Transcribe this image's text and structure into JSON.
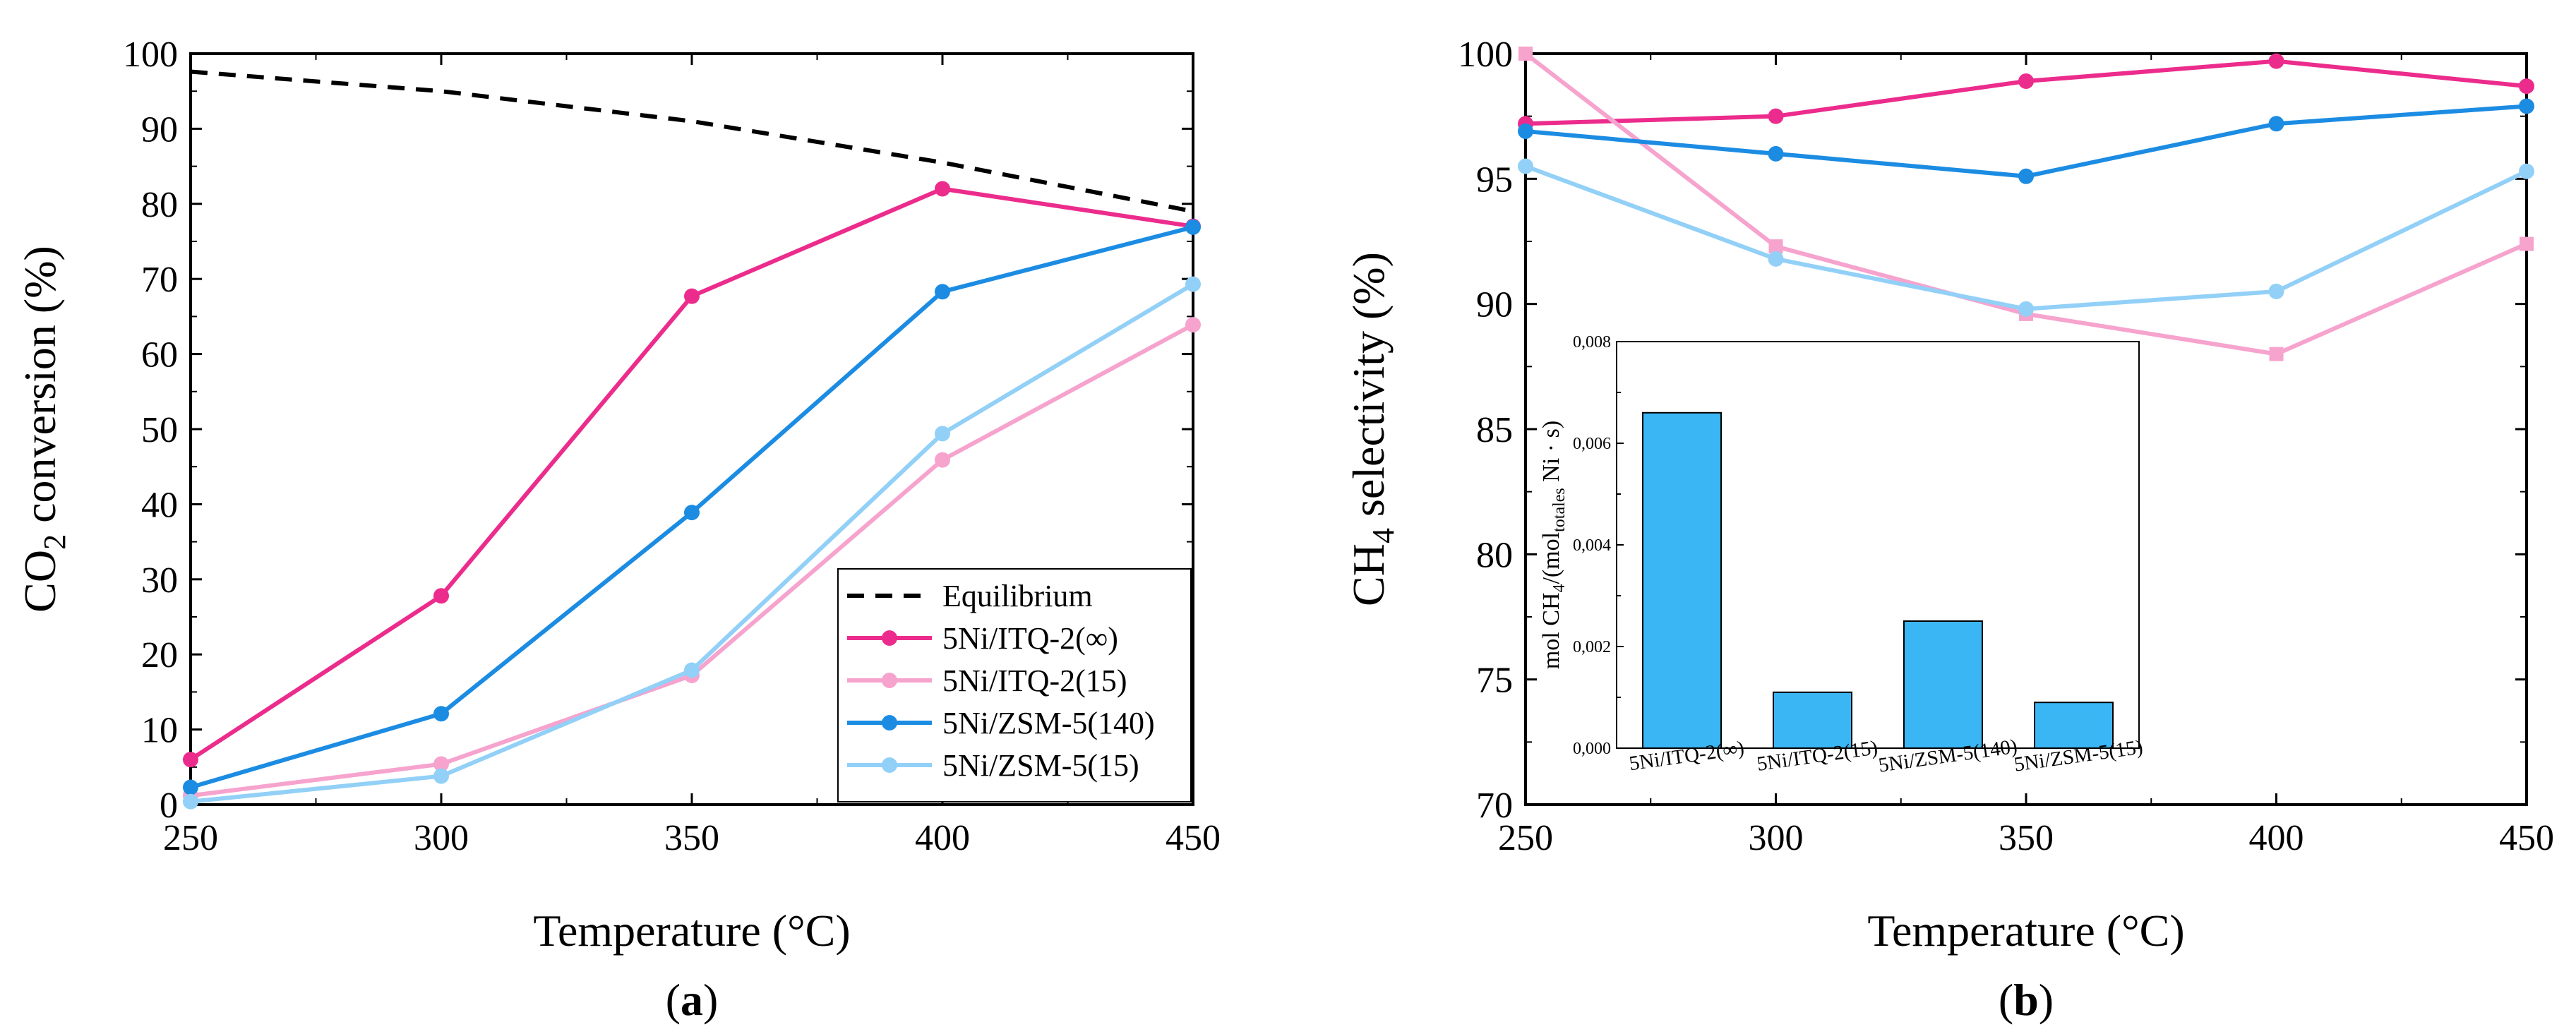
{
  "chart_data": [
    {
      "type": "line",
      "panel": "a",
      "panel_label": "(a)",
      "xlabel": "Temperature (°C)",
      "ylabel": {
        "pre": "CO",
        "sub": "2",
        "post": " conversion (%)"
      },
      "xlim": [
        250,
        450
      ],
      "ylim": [
        0,
        100
      ],
      "xticks": [
        250,
        300,
        350,
        400,
        450
      ],
      "yticks": [
        0,
        10,
        20,
        30,
        40,
        50,
        60,
        70,
        80,
        90,
        100
      ],
      "legend": "bottom-right",
      "series": [
        {
          "name": "Equilibrium",
          "color": "#000000",
          "dashed": true,
          "marker": "none",
          "x": [
            250,
            300,
            350,
            400,
            450
          ],
          "values": [
            97.6,
            95.0,
            91.0,
            85.5,
            79.0
          ]
        },
        {
          "name": "5Ni/ITQ-2(∞)",
          "color": "#EC2C8C",
          "marker": "circle",
          "x": [
            250,
            300,
            350,
            400,
            450
          ],
          "values": [
            6.0,
            27.8,
            67.7,
            82.0,
            77.0
          ]
        },
        {
          "name": "5Ni/ITQ-2(15)",
          "color": "#F6A3CE",
          "marker": "circle",
          "x": [
            250,
            300,
            350,
            400,
            450
          ],
          "values": [
            1.2,
            5.4,
            17.2,
            45.9,
            63.9
          ]
        },
        {
          "name": "5Ni/ZSM-5(140)",
          "color": "#1C8CE3",
          "marker": "circle",
          "x": [
            250,
            300,
            350,
            400,
            450
          ],
          "values": [
            2.3,
            12.1,
            38.9,
            68.3,
            76.9
          ]
        },
        {
          "name": "5Ni/ZSM-5(15)",
          "color": "#92D0F7",
          "marker": "circle",
          "x": [
            250,
            300,
            350,
            400,
            450
          ],
          "values": [
            0.4,
            3.8,
            17.9,
            49.4,
            69.3
          ]
        }
      ]
    },
    {
      "type": "line",
      "panel": "b",
      "panel_label": "(b)",
      "xlabel": "Temperature (°C)",
      "ylabel": {
        "pre": "CH",
        "sub": "4",
        "post": " selectivity (%)"
      },
      "xlim": [
        250,
        450
      ],
      "ylim": [
        70,
        100
      ],
      "xticks": [
        250,
        300,
        350,
        400,
        450
      ],
      "yticks": [
        70,
        75,
        80,
        85,
        90,
        95,
        100
      ],
      "series": [
        {
          "name": "5Ni/ITQ-2(∞)",
          "color": "#EC2C8C",
          "marker": "circle",
          "x": [
            250,
            300,
            350,
            400,
            450
          ],
          "values": [
            97.2,
            97.5,
            98.9,
            99.7,
            98.7
          ]
        },
        {
          "name": "5Ni/ITQ-2(15)",
          "color": "#F6A3CE",
          "marker": "square",
          "x": [
            250,
            300,
            350,
            400,
            450
          ],
          "values": [
            100.0,
            92.3,
            89.6,
            88.0,
            92.4
          ]
        },
        {
          "name": "5Ni/ZSM-5(140)",
          "color": "#1C8CE3",
          "marker": "circle",
          "x": [
            250,
            300,
            350,
            400,
            450
          ],
          "values": [
            96.9,
            96.0,
            95.1,
            97.2,
            97.9
          ]
        },
        {
          "name": "5Ni/ZSM-5(15)",
          "color": "#92D0F7",
          "marker": "circle",
          "x": [
            250,
            300,
            350,
            400,
            450
          ],
          "values": [
            95.5,
            91.8,
            89.8,
            90.5,
            95.3
          ]
        }
      ]
    },
    {
      "type": "bar",
      "panel": "b-inset",
      "categories": [
        "5Ni/ITQ-2(∞)",
        "5Ni/ITQ-2(15)",
        "5Ni/ZSM-5(140)",
        "5Ni/ZSM-5(15)"
      ],
      "values": [
        0.0066,
        0.0011,
        0.0025,
        0.0009
      ],
      "color": "#3BB6F5",
      "ylabel": {
        "pre": "mol CH",
        "sub1": "4",
        "mid": "/(mol",
        "sub2": "totales",
        "post": " Ni · s)"
      },
      "ylim": [
        0,
        0.008
      ],
      "yticks": [
        0,
        0.002,
        0.004,
        0.006,
        0.008
      ],
      "ytick_labels": [
        "0,000",
        "0,002",
        "0,004",
        "0,006",
        "0,008"
      ]
    }
  ]
}
